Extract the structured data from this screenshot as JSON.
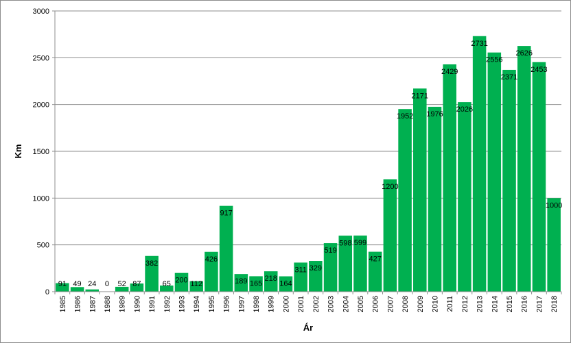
{
  "chart_data": {
    "type": "bar",
    "xlabel": "Ár",
    "ylabel": "Km",
    "ylim": [
      0,
      3000
    ],
    "yticks": [
      0,
      500,
      1000,
      1500,
      2000,
      2500,
      3000
    ],
    "grid": "horizontal",
    "legend": "none",
    "bar_color": "#00b050",
    "categories": [
      "1985",
      "1986",
      "1987",
      "1988",
      "1989",
      "1990",
      "1991",
      "1992",
      "1993",
      "1994",
      "1995",
      "1996",
      "1997",
      "1998",
      "1999",
      "2000",
      "2001",
      "2002",
      "2003",
      "2004",
      "2005",
      "2006",
      "2007",
      "2008",
      "2009",
      "2010",
      "2011",
      "2012",
      "2013",
      "2014",
      "2015",
      "2016",
      "2017",
      "2018"
    ],
    "values": [
      91,
      49,
      24,
      0,
      52,
      87,
      382,
      65,
      200,
      112,
      426,
      917,
      189,
      165,
      218,
      164,
      311,
      329,
      519,
      598,
      599,
      427,
      1200,
      1952,
      2171,
      1976,
      2429,
      2026,
      2731,
      2556,
      2371,
      2626,
      2453,
      1000
    ]
  }
}
